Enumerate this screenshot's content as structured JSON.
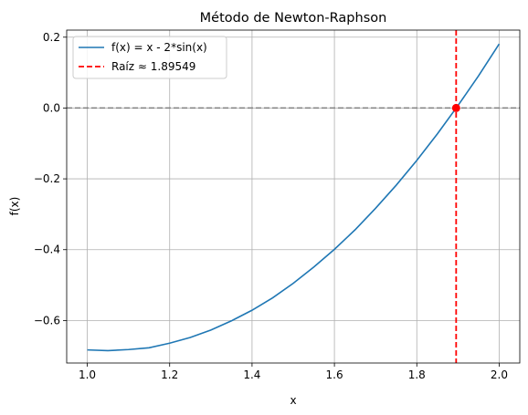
{
  "chart_data": {
    "type": "line",
    "title": "Método de Newton-Raphson",
    "xlabel": "x",
    "ylabel": "f(x)",
    "xlim": [
      0.95,
      2.05
    ],
    "ylim": [
      -0.72,
      0.22
    ],
    "x_ticks": [
      1.0,
      1.2,
      1.4,
      1.6,
      1.8,
      2.0
    ],
    "x_tick_labels": [
      "1.0",
      "1.2",
      "1.4",
      "1.6",
      "1.8",
      "2.0"
    ],
    "y_ticks": [
      -0.6,
      -0.4,
      -0.2,
      0.0,
      0.2
    ],
    "y_tick_labels": [
      "−0.6",
      "−0.4",
      "−0.2",
      "0.0",
      "0.2"
    ],
    "grid": true,
    "legend_position": "top-left",
    "function": "x - 2*sin(x)",
    "series": [
      {
        "name": "f(x) = x - 2*sin(x)",
        "color": "#1f77b4",
        "style": "solid",
        "x": [
          1.0,
          1.05,
          1.1,
          1.15,
          1.2,
          1.25,
          1.3,
          1.35,
          1.4,
          1.45,
          1.5,
          1.55,
          1.6,
          1.65,
          1.7,
          1.75,
          1.8,
          1.85,
          1.9,
          1.95,
          2.0
        ],
        "y": [
          -0.683,
          -0.685,
          -0.682,
          -0.677,
          -0.664,
          -0.648,
          -0.627,
          -0.601,
          -0.571,
          -0.536,
          -0.495,
          -0.449,
          -0.399,
          -0.344,
          -0.283,
          -0.218,
          -0.148,
          -0.073,
          0.007,
          0.091,
          0.181
        ]
      },
      {
        "name": "Raíz ≈ 1.89549",
        "color": "#ff0000",
        "style": "dashed",
        "type": "vline",
        "x": 1.89549
      }
    ],
    "reference_line": {
      "y": 0.0,
      "color": "#808080",
      "style": "dashed"
    },
    "root_point": {
      "x": 1.89549,
      "y": 0.0,
      "color": "#ff0000"
    }
  }
}
